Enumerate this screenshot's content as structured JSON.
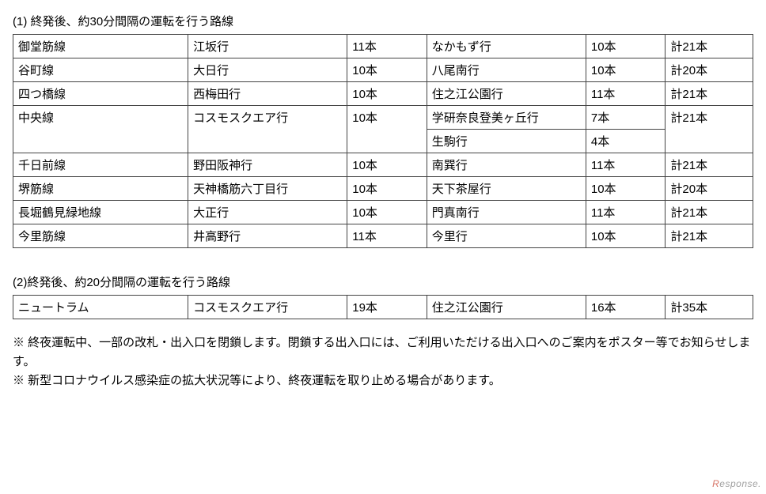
{
  "section1": {
    "title": "(1) 終発後、約30分間隔の運転を行う路線",
    "columns": {
      "line": "line",
      "dest1": "dest1",
      "cnt1": "cnt1",
      "dest2": "dest2",
      "cnt2": "cnt2",
      "total": "total"
    },
    "rows": [
      {
        "line": "御堂筋線",
        "dest1": "江坂行",
        "cnt1": "11本",
        "dest2": "なかもず行",
        "cnt2": "10本",
        "total": "計21本"
      },
      {
        "line": "谷町線",
        "dest1": "大日行",
        "cnt1": "10本",
        "dest2": "八尾南行",
        "cnt2": "10本",
        "total": "計20本"
      },
      {
        "line": "四つ橋線",
        "dest1": "西梅田行",
        "cnt1": "10本",
        "dest2": "住之江公園行",
        "cnt2": "11本",
        "total": "計21本"
      }
    ],
    "chuo": {
      "line": "中央線",
      "dest1": "コスモスクエア行",
      "cnt1": "10本",
      "dest2a": "学研奈良登美ヶ丘行",
      "cnt2a": "7本",
      "dest2b": "生駒行",
      "cnt2b": "4本",
      "total": "計21本"
    },
    "rows2": [
      {
        "line": "千日前線",
        "dest1": "野田阪神行",
        "cnt1": "10本",
        "dest2": "南巽行",
        "cnt2": "11本",
        "total": "計21本"
      },
      {
        "line": "堺筋線",
        "dest1": "天神橋筋六丁目行",
        "cnt1": "10本",
        "dest2": "天下茶屋行",
        "cnt2": "10本",
        "total": "計20本"
      },
      {
        "line": "長堀鶴見緑地線",
        "dest1": "大正行",
        "cnt1": "10本",
        "dest2": "門真南行",
        "cnt2": "11本",
        "total": "計21本"
      },
      {
        "line": "今里筋線",
        "dest1": "井高野行",
        "cnt1": "11本",
        "dest2": "今里行",
        "cnt2": "10本",
        "total": "計21本"
      }
    ]
  },
  "section2": {
    "title": "(2)終発後、約20分間隔の運転を行う路線",
    "row": {
      "line": "ニュートラム",
      "dest1": "コスモスクエア行",
      "cnt1": "19本",
      "dest2": "住之江公園行",
      "cnt2": "16本",
      "total": "計35本"
    }
  },
  "notes": {
    "n1": "※ 終夜運転中、一部の改札・出入口を閉鎖します。閉鎖する出入口には、ご利用いただける出入口へのご案内をポスター等でお知らせします。",
    "n2": "※ 新型コロナウイルス感染症の拡大状況等により、終夜運転を取り止める場合があります。"
  },
  "watermark": {
    "left": "R",
    "right": "esponse."
  }
}
